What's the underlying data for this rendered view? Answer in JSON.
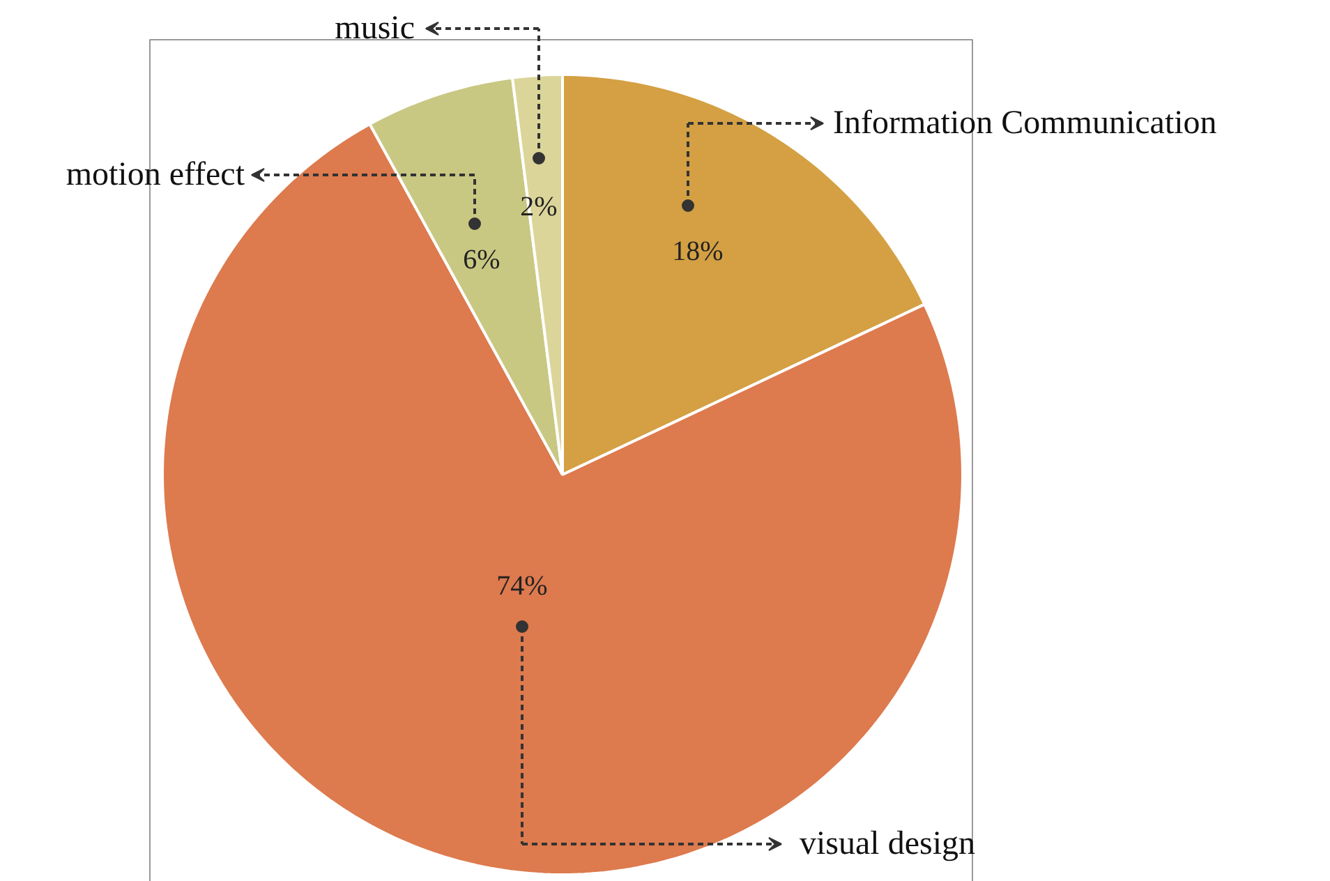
{
  "chart_data": {
    "type": "pie",
    "categories": [
      "Information Communication",
      "visual design",
      "motion effect",
      "music"
    ],
    "values": [
      18,
      74,
      6,
      2
    ],
    "colors": [
      "#d4a043",
      "#dd7a4e",
      "#c9c883",
      "#dcd59a"
    ],
    "value_labels": [
      "18%",
      "74%",
      "6%",
      "2%"
    ]
  }
}
